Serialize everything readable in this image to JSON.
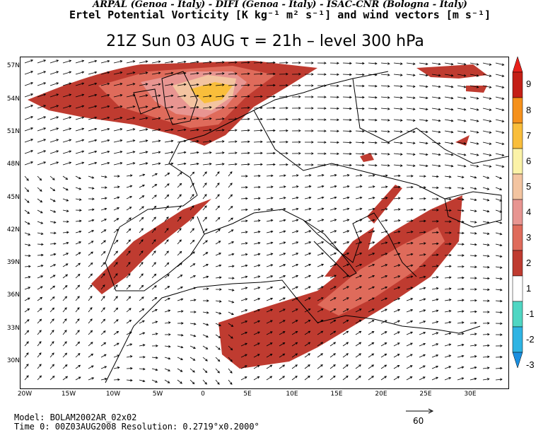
{
  "header": {
    "line1": "ARPAL (Genoa - Italy)  -  DIFI (Genoa - Italy)  -  ISAC-CNR (Bologna - Italy)",
    "line2": "Ertel Potential Vorticity [K kg⁻¹ m² s⁻¹] and wind vectors [m s⁻¹]",
    "line3": "21Z Sun 03 AUG  τ = 21h  –  level 300 hPa"
  },
  "axes": {
    "lat_labels": [
      "57N",
      "54N",
      "51N",
      "48N",
      "45N",
      "42N",
      "39N",
      "36N",
      "33N",
      "30N"
    ],
    "lon_labels": [
      "20W",
      "15W",
      "10W",
      "5W",
      "0",
      "5E",
      "10E",
      "15E",
      "20E",
      "25E",
      "30E"
    ]
  },
  "colorbar": {
    "labels": [
      "9",
      "8",
      "7",
      "6",
      "5",
      "4",
      "3",
      "2",
      "1",
      "-1",
      "-2",
      "-3"
    ],
    "colors": [
      "#e8211b",
      "#c41f16",
      "#f5911c",
      "#f9be3b",
      "#fbf2a7",
      "#f3c4a0",
      "#e89591",
      "#df6b5b",
      "#bf3b30",
      "#ffffff",
      "#4fd6c3",
      "#2fb4e3",
      "#1a8fe0"
    ]
  },
  "footer": {
    "model": "Model: BOLAM2002AR_02x02",
    "time": "Time 0: 00Z03AUG2008     Resolution: 0.2719°x0.2000°"
  },
  "reference_vector": {
    "label": "60",
    "value_m_s": 60
  },
  "colors": {
    "land_line": "#000000",
    "pv_1_2": "#bf3b30",
    "pv_2_3": "#df6b5b",
    "pv_5_6": "#fbf2a7"
  }
}
